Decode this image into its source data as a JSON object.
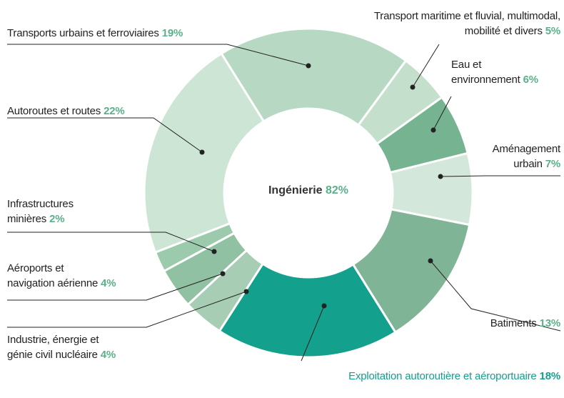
{
  "chart_data": {
    "type": "donut",
    "center_label": {
      "text": "Ingénierie",
      "value": 82,
      "value_label": "82%"
    },
    "categories": [
      "Transports urbains et ferroviaires",
      "Transport maritime et fluvial, multimodal,\nmobilité et divers",
      "Eau et\nenvironnement",
      "Aménagement\nurbain",
      "Batiments",
      "Exploitation autoroutière et aéroportuaire",
      "Industrie, énergie et\ngénie civil nucléaire",
      "Aéroports et\nnavigation aérienne",
      "Infrastructures\nminières",
      "Autoroutes et routes"
    ],
    "values": [
      19,
      5,
      6,
      7,
      13,
      18,
      4,
      4,
      2,
      22
    ],
    "value_labels": [
      "19%",
      "5%",
      "6%",
      "7%",
      "13%",
      "18%",
      "4%",
      "4%",
      "2%",
      "22%"
    ],
    "colors": [
      "#b7d8c2",
      "#c4e0cc",
      "#76b491",
      "#d3e8da",
      "#7fb596",
      "#13a08c",
      "#a7cdb4",
      "#8fc1a2",
      "#9ccaac",
      "#cde5d4"
    ]
  }
}
